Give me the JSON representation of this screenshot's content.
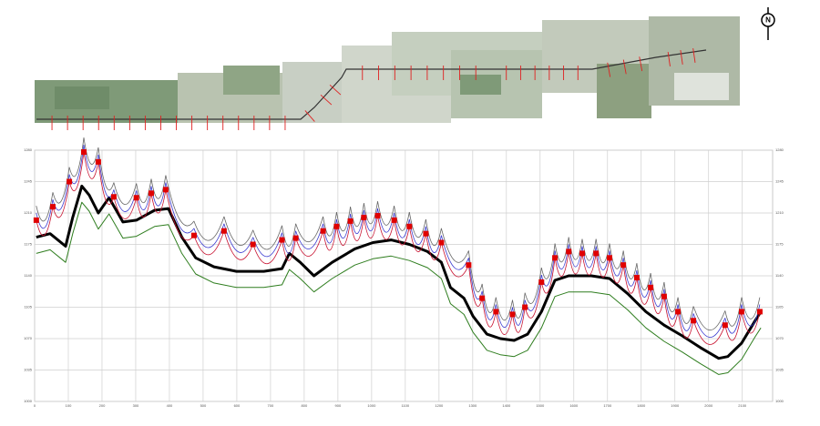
{
  "compass_label": "N",
  "chart_data": {
    "type": "line",
    "grid": true,
    "xlim": [
      0,
      2190
    ],
    "xticks": [
      0,
      100,
      200,
      300,
      400,
      500,
      600,
      700,
      800,
      900,
      1000,
      1100,
      1200,
      1300,
      1400,
      1500,
      1600,
      1700,
      1800,
      1900,
      2000,
      2100
    ],
    "ylim": [
      1000,
      1280
    ],
    "yticks": [
      1000,
      1035,
      1070,
      1105,
      1140,
      1175,
      1210,
      1245,
      1280
    ],
    "x": [
      5,
      46,
      92,
      113,
      140,
      162,
      189,
      221,
      262,
      302,
      356,
      397,
      437,
      478,
      532,
      599,
      680,
      734,
      756,
      788,
      829,
      883,
      950,
      1004,
      1058,
      1112,
      1166,
      1207,
      1234,
      1274,
      1301,
      1342,
      1382,
      1423,
      1463,
      1504,
      1544,
      1585,
      1652,
      1706,
      1760,
      1814,
      1868,
      1922,
      1976,
      2030,
      2057,
      2098,
      2138,
      2155
    ],
    "series": [
      {
        "color": "#000000",
        "width": 3,
        "values": [
          1183,
          1187,
          1173,
          1205,
          1240,
          1230,
          1210,
          1227,
          1200,
          1202,
          1213,
          1215,
          1183,
          1160,
          1150,
          1145,
          1145,
          1148,
          1165,
          1155,
          1140,
          1155,
          1170,
          1177,
          1180,
          1175,
          1167,
          1155,
          1127,
          1115,
          1095,
          1075,
          1070,
          1068,
          1075,
          1100,
          1135,
          1140,
          1140,
          1137,
          1120,
          1100,
          1085,
          1073,
          1060,
          1048,
          1050,
          1065,
          1090,
          1100
        ]
      },
      {
        "color": "#2e7d1e",
        "width": 1,
        "values": [
          1165,
          1169,
          1155,
          1187,
          1222,
          1212,
          1192,
          1209,
          1182,
          1184,
          1195,
          1197,
          1165,
          1142,
          1132,
          1127,
          1127,
          1130,
          1147,
          1137,
          1122,
          1137,
          1152,
          1159,
          1162,
          1157,
          1149,
          1137,
          1109,
          1097,
          1077,
          1057,
          1052,
          1050,
          1057,
          1082,
          1117,
          1122,
          1122,
          1119,
          1102,
          1082,
          1067,
          1055,
          1042,
          1030,
          1032,
          1047,
          1072,
          1082
        ]
      }
    ],
    "towers": {
      "marker_color": "#e00000",
      "sag": 24,
      "x": [
        5,
        54,
        103,
        146,
        189,
        235,
        302,
        346,
        389,
        473,
        562,
        648,
        734,
        775,
        856,
        896,
        937,
        977,
        1018,
        1067,
        1112,
        1161,
        1207,
        1288,
        1328,
        1369,
        1418,
        1455,
        1504,
        1544,
        1585,
        1625,
        1666,
        1706,
        1747,
        1787,
        1828,
        1868,
        1909,
        1955,
        2049,
        2098,
        2152
      ],
      "series": [
        {
          "color": "#666666",
          "values": [
            1218,
            1233,
            1261,
            1294,
            1283,
            1244,
            1243,
            1248,
            1252,
            1201,
            1206,
            1191,
            1196,
            1198,
            1206,
            1211,
            1217,
            1221,
            1223,
            1218,
            1211,
            1203,
            1193,
            1168,
            1131,
            1116,
            1113,
            1121,
            1149,
            1176,
            1183,
            1181,
            1181,
            1176,
            1168,
            1154,
            1143,
            1133,
            1116,
            1106,
            1101,
            1116,
            1116
          ]
        },
        {
          "color": "#3a3ad0",
          "values": [
            1210,
            1225,
            1253,
            1286,
            1275,
            1236,
            1235,
            1240,
            1244,
            1193,
            1198,
            1183,
            1188,
            1190,
            1198,
            1203,
            1209,
            1213,
            1215,
            1210,
            1203,
            1195,
            1185,
            1160,
            1123,
            1108,
            1105,
            1113,
            1141,
            1168,
            1175,
            1173,
            1173,
            1168,
            1160,
            1146,
            1135,
            1125,
            1108,
            1098,
            1093,
            1108,
            1108
          ]
        },
        {
          "color": "#c8102e",
          "values": [
            1202,
            1217,
            1245,
            1278,
            1267,
            1228,
            1227,
            1232,
            1236,
            1185,
            1190,
            1175,
            1180,
            1182,
            1190,
            1195,
            1201,
            1205,
            1207,
            1202,
            1195,
            1187,
            1177,
            1152,
            1115,
            1100,
            1097,
            1105,
            1133,
            1160,
            1167,
            1165,
            1165,
            1160,
            1152,
            1138,
            1127,
            1117,
            1100,
            1090,
            1085,
            1100,
            1100
          ]
        }
      ]
    }
  }
}
